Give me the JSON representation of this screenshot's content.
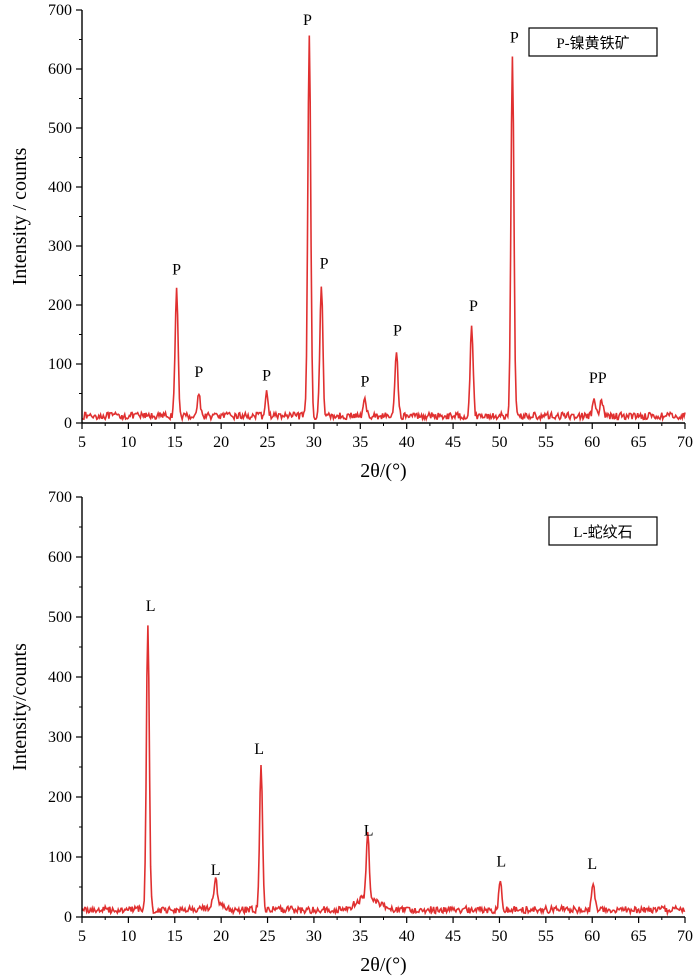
{
  "colors": {
    "series": "#e03030",
    "axis": "#000000"
  },
  "chart_data": [
    {
      "type": "line",
      "title": "",
      "xlabel": "2θ/(°)",
      "ylabel": "Intensity / counts",
      "xlim": [
        5,
        70
      ],
      "ylim": [
        0,
        700
      ],
      "xticks": [
        5,
        10,
        15,
        20,
        25,
        30,
        35,
        40,
        45,
        50,
        55,
        60,
        65,
        70
      ],
      "yticks": [
        0,
        100,
        200,
        300,
        400,
        500,
        600,
        700
      ],
      "legend": "P-镍黄铁矿",
      "legend_position": "top-right",
      "baseline": 12,
      "peaks": [
        {
          "x": 15.2,
          "y": 225
        },
        {
          "x": 17.6,
          "y": 50
        },
        {
          "x": 24.9,
          "y": 50
        },
        {
          "x": 29.5,
          "y": 660
        },
        {
          "x": 30.8,
          "y": 235
        },
        {
          "x": 35.5,
          "y": 38
        },
        {
          "x": 38.9,
          "y": 125
        },
        {
          "x": 47.0,
          "y": 165
        },
        {
          "x": 51.4,
          "y": 625
        },
        {
          "x": 60.2,
          "y": 40
        },
        {
          "x": 61.0,
          "y": 38
        }
      ],
      "annotations": [
        {
          "text": "P",
          "x": 15.2,
          "y": 252
        },
        {
          "text": "P",
          "x": 17.6,
          "y": 78
        },
        {
          "text": "P",
          "x": 24.9,
          "y": 72
        },
        {
          "text": "P",
          "x": 29.3,
          "y": 675
        },
        {
          "text": "P",
          "x": 31.1,
          "y": 262
        },
        {
          "text": "P",
          "x": 35.5,
          "y": 62
        },
        {
          "text": "P",
          "x": 39.0,
          "y": 148
        },
        {
          "text": "P",
          "x": 47.2,
          "y": 190
        },
        {
          "text": "P",
          "x": 51.6,
          "y": 645
        },
        {
          "text": "PP",
          "x": 60.6,
          "y": 68
        }
      ]
    },
    {
      "type": "line",
      "title": "",
      "xlabel": "2θ/(°)",
      "ylabel": "Intensity/counts",
      "xlim": [
        5,
        70
      ],
      "ylim": [
        0,
        700
      ],
      "xticks": [
        5,
        10,
        15,
        20,
        25,
        30,
        35,
        40,
        45,
        50,
        55,
        60,
        65,
        70
      ],
      "yticks": [
        0,
        100,
        200,
        300,
        400,
        500,
        600,
        700
      ],
      "legend": "L-蛇纹石",
      "legend_position": "top-right",
      "baseline": 12,
      "peaks": [
        {
          "x": 12.1,
          "y": 490
        },
        {
          "x": 19.4,
          "y": 55
        },
        {
          "x": 24.3,
          "y": 250
        },
        {
          "x": 35.8,
          "y": 115
        },
        {
          "x": 50.1,
          "y": 65
        },
        {
          "x": 60.1,
          "y": 60
        }
      ],
      "annotations": [
        {
          "text": "L",
          "x": 12.4,
          "y": 510
        },
        {
          "text": "L",
          "x": 19.4,
          "y": 70
        },
        {
          "text": "L",
          "x": 24.1,
          "y": 272
        },
        {
          "text": "L",
          "x": 35.9,
          "y": 136
        },
        {
          "text": "L",
          "x": 50.2,
          "y": 84
        },
        {
          "text": "L",
          "x": 60.0,
          "y": 80
        }
      ]
    }
  ]
}
